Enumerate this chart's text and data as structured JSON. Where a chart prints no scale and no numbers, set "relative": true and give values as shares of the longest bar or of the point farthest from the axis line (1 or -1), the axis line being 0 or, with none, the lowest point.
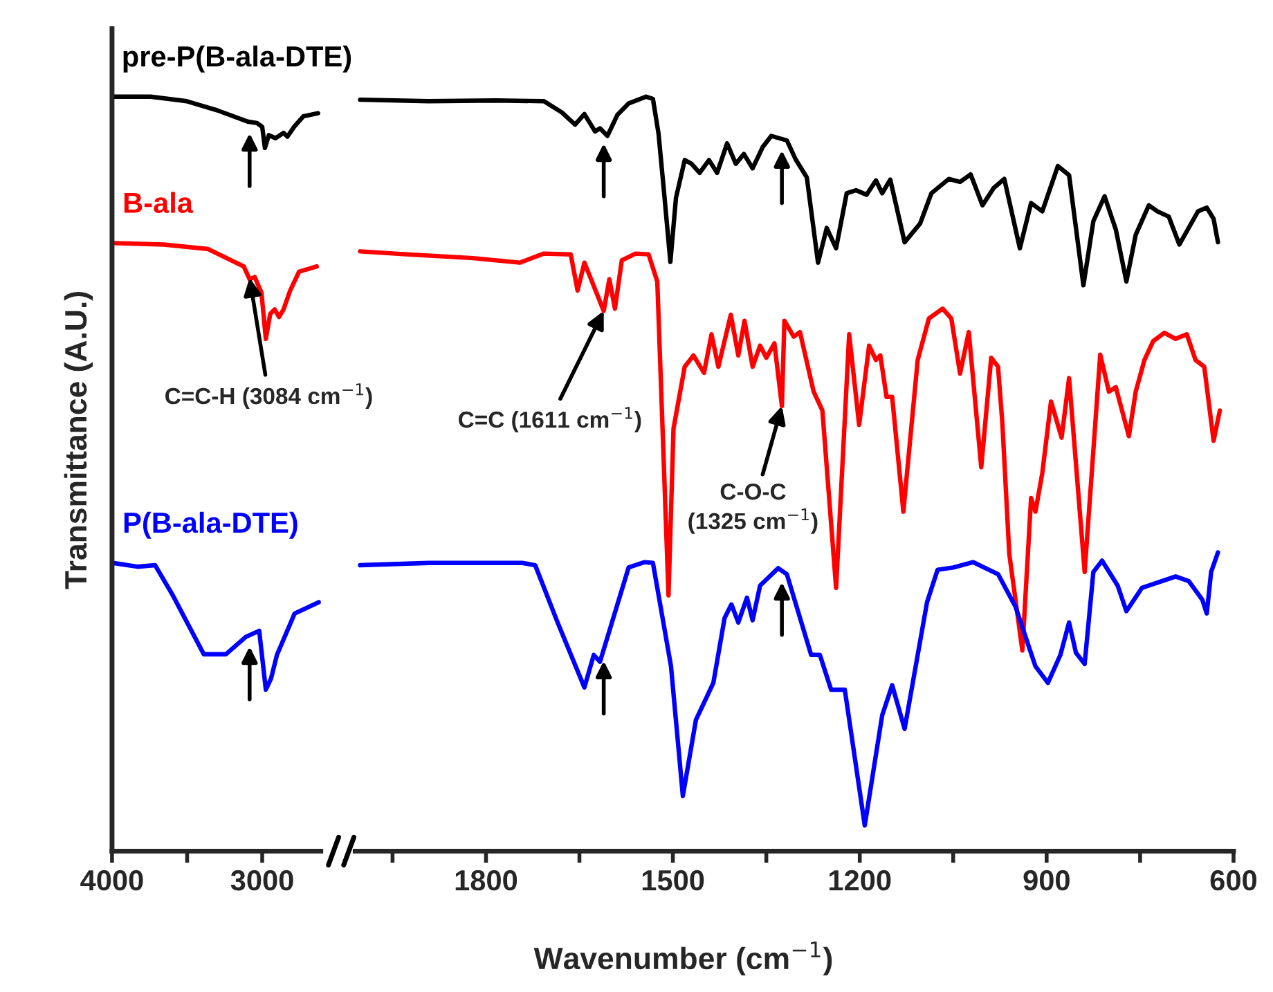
{
  "chart_data": [
    {
      "type": "line",
      "relative": true,
      "ylabel": "Transmittance (A.U.)",
      "xlim": [
        4000,
        2610
      ],
      "xticks": [
        4000,
        {
          "value": 3500,
          "label": null
        },
        3000
      ],
      "annotations": [
        {
          "text": "C=C-H (3084 cm$^{−1}$)",
          "x": 3084,
          "y": 0.76
        }
      ],
      "series": [
        {
          "name": "pre-P(B-ala-DTE)",
          "color": "#000000",
          "x": [
            4000,
            3743,
            3504,
            3301,
            3097,
            3035,
            3000,
            2982,
            2956,
            2912,
            2858,
            2832,
            2788,
            2726,
            2628
          ],
          "values": [
            1.0,
            1.0,
            0.994,
            0.982,
            0.967,
            0.965,
            0.96,
            0.932,
            0.949,
            0.945,
            0.952,
            0.947,
            0.96,
            0.974,
            0.978
          ]
        },
        {
          "name": "B-ala",
          "color": "#ff0000",
          "x": [
            3994,
            3655,
            3360,
            3123,
            3084,
            3050,
            3005,
            2976,
            2947,
            2917,
            2888,
            2858,
            2814,
            2755,
            2637
          ],
          "values": [
            0.806,
            0.804,
            0.798,
            0.775,
            0.758,
            0.761,
            0.74,
            0.679,
            0.712,
            0.718,
            0.708,
            0.718,
            0.743,
            0.768,
            0.775
          ]
        },
        {
          "name": "P(B-ala-DTE)",
          "color": "#0000ff",
          "x": [
            3994,
            3831,
            3713,
            3595,
            3389,
            3241,
            3109,
            3020,
            2976,
            2941,
            2902,
            2784,
            2622
          ],
          "values": [
            0.382,
            0.377,
            0.379,
            0.339,
            0.261,
            0.261,
            0.284,
            0.292,
            0.214,
            0.229,
            0.26,
            0.315,
            0.33
          ]
        }
      ]
    },
    {
      "type": "line",
      "relative": true,
      "xlim": [
        2010,
        600
      ],
      "xticks": [
        {
          "value": 1950,
          "label": null
        },
        1800,
        {
          "value": 1650,
          "label": null
        },
        1500,
        {
          "value": 1350,
          "label": null
        },
        1200,
        {
          "value": 1050,
          "label": null
        },
        900,
        {
          "value": 750,
          "label": null
        },
        600
      ],
      "xlabel": "Wavenumber (cm$^{−1}$)",
      "annotations": [
        {
          "text": "C=C (1611 cm$^{−1}$)",
          "x": 1611,
          "y": 0.716
        },
        {
          "text": "C-O-C\n(1325 cm$^{−1}$)",
          "x": 1325,
          "y": 0.59
        }
      ],
      "series": [
        {
          "color": "#000000",
          "x": [
            2002,
            1892,
            1785,
            1707,
            1678,
            1657,
            1642,
            1625,
            1617,
            1605,
            1589,
            1571,
            1543,
            1532,
            1523,
            1514,
            1504,
            1495,
            1481,
            1470,
            1457,
            1442,
            1429,
            1413,
            1399,
            1386,
            1372,
            1356,
            1342,
            1317,
            1303,
            1285,
            1267,
            1253,
            1238,
            1221,
            1206,
            1189,
            1174,
            1164,
            1151,
            1128,
            1103,
            1085,
            1057,
            1039,
            1022,
            1003,
            985,
            968,
            943,
            925,
            907,
            882,
            864,
            841,
            825,
            807,
            789,
            772,
            757,
            736,
            722,
            704,
            687,
            672,
            657,
            643,
            632,
            625
          ],
          "values": [
            0.996,
            0.994,
            0.995,
            0.994,
            0.979,
            0.963,
            0.977,
            0.954,
            0.958,
            0.948,
            0.976,
            0.991,
            1.0,
            0.997,
            0.951,
            0.872,
            0.781,
            0.866,
            0.916,
            0.911,
            0.899,
            0.916,
            0.899,
            0.938,
            0.911,
            0.924,
            0.905,
            0.933,
            0.948,
            0.942,
            0.917,
            0.893,
            0.78,
            0.826,
            0.799,
            0.872,
            0.876,
            0.87,
            0.889,
            0.872,
            0.89,
            0.807,
            0.832,
            0.872,
            0.891,
            0.887,
            0.897,
            0.856,
            0.879,
            0.891,
            0.799,
            0.859,
            0.848,
            0.908,
            0.896,
            0.75,
            0.835,
            0.868,
            0.824,
            0.755,
            0.817,
            0.856,
            0.848,
            0.841,
            0.804,
            0.826,
            0.848,
            0.853,
            0.838,
            0.807
          ]
        },
        {
          "color": "#ff0000",
          "x": [
            2002,
            1928,
            1821,
            1746,
            1707,
            1664,
            1653,
            1642,
            1611,
            1602,
            1593,
            1582,
            1560,
            1539,
            1525,
            1507,
            1499,
            1481,
            1467,
            1450,
            1438,
            1427,
            1407,
            1395,
            1385,
            1372,
            1360,
            1350,
            1337,
            1325,
            1321,
            1306,
            1296,
            1274,
            1260,
            1238,
            1217,
            1201,
            1185,
            1174,
            1167,
            1157,
            1148,
            1130,
            1107,
            1089,
            1067,
            1053,
            1039,
            1025,
            1005,
            989,
            978,
            971,
            960,
            939,
            925,
            918,
            907,
            893,
            876,
            864,
            839,
            814,
            800,
            789,
            768,
            757,
            743,
            729,
            711,
            693,
            675,
            661,
            647,
            632,
            622
          ],
          "values": [
            0.795,
            0.791,
            0.786,
            0.78,
            0.792,
            0.791,
            0.743,
            0.78,
            0.716,
            0.758,
            0.719,
            0.783,
            0.792,
            0.791,
            0.755,
            0.339,
            0.56,
            0.642,
            0.657,
            0.634,
            0.685,
            0.642,
            0.711,
            0.657,
            0.703,
            0.642,
            0.67,
            0.654,
            0.673,
            0.59,
            0.703,
            0.682,
            0.688,
            0.609,
            0.584,
            0.349,
            0.685,
            0.565,
            0.67,
            0.651,
            0.657,
            0.602,
            0.602,
            0.45,
            0.651,
            0.706,
            0.719,
            0.706,
            0.633,
            0.688,
            0.509,
            0.654,
            0.642,
            0.566,
            0.394,
            0.266,
            0.468,
            0.45,
            0.501,
            0.596,
            0.548,
            0.627,
            0.37,
            0.658,
            0.609,
            0.615,
            0.55,
            0.609,
            0.651,
            0.676,
            0.687,
            0.679,
            0.685,
            0.651,
            0.642,
            0.544,
            0.584
          ]
        },
        {
          "color": "#0000ff",
          "x": [
            2002,
            1892,
            1742,
            1721,
            1685,
            1642,
            1627,
            1617,
            1571,
            1546,
            1532,
            1503,
            1484,
            1463,
            1435,
            1417,
            1406,
            1395,
            1381,
            1372,
            1360,
            1331,
            1317,
            1278,
            1264,
            1246,
            1224,
            1192,
            1164,
            1148,
            1128,
            1092,
            1075,
            1050,
            1018,
            978,
            950,
            918,
            898,
            878,
            864,
            853,
            839,
            825,
            811,
            786,
            772,
            747,
            693,
            672,
            650,
            643,
            636,
            625
          ],
          "values": [
            0.379,
            0.382,
            0.382,
            0.379,
            0.303,
            0.217,
            0.26,
            0.251,
            0.376,
            0.383,
            0.382,
            0.245,
            0.073,
            0.174,
            0.223,
            0.309,
            0.327,
            0.303,
            0.336,
            0.306,
            0.352,
            0.375,
            0.367,
            0.26,
            0.26,
            0.214,
            0.214,
            0.034,
            0.18,
            0.22,
            0.162,
            0.33,
            0.373,
            0.376,
            0.383,
            0.367,
            0.324,
            0.245,
            0.223,
            0.26,
            0.303,
            0.263,
            0.248,
            0.37,
            0.385,
            0.352,
            0.318,
            0.349,
            0.364,
            0.358,
            0.333,
            0.315,
            0.37,
            0.396
          ]
        }
      ]
    }
  ]
}
